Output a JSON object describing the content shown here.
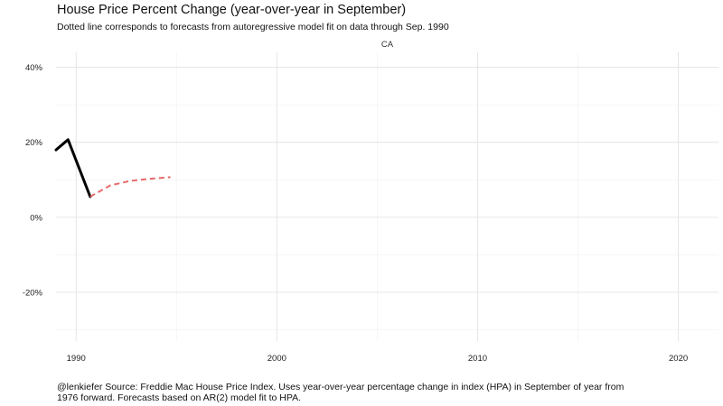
{
  "chart_data": {
    "type": "line",
    "title": "House Price Percent Change (year-over-year in September)",
    "subtitle": "Dotted line corresponds to forecasts from autoregressive model fit on data through Sep. 1990",
    "caption": "@lenkiefer Source: Freddie Mac House Price Index. Uses year-over-year percentage change in index (HPA) in September of year from 1976 forward. Forecasts based on AR(2) model fit to HPA.",
    "facet_label": "CA",
    "xlabel": "",
    "ylabel": "",
    "xlim": [
      1989,
      2022
    ],
    "ylim": [
      -33,
      44
    ],
    "x_ticks": [
      1990,
      2000,
      2010,
      2020
    ],
    "x_tick_labels": [
      "1990",
      "2000",
      "2010",
      "2020"
    ],
    "y_ticks": [
      -20,
      0,
      20,
      40
    ],
    "y_tick_labels": [
      "-20%",
      "0%",
      "20%",
      "40%"
    ],
    "grid": true,
    "legend": "none",
    "series": [
      {
        "role": "actual",
        "color": "#000000",
        "style": "solid",
        "points": [
          [
            1989,
            18.0
          ],
          [
            1989.6,
            20.7
          ],
          [
            1990.7,
            5.5
          ]
        ]
      },
      {
        "role": "forecast",
        "color": "#e8696b",
        "style": "dashed",
        "points": [
          [
            1990.7,
            5.5
          ],
          [
            1991.7,
            8.5
          ],
          [
            1992.7,
            9.7
          ],
          [
            1993.7,
            10.3
          ],
          [
            1994.7,
            10.7
          ]
        ]
      }
    ]
  }
}
